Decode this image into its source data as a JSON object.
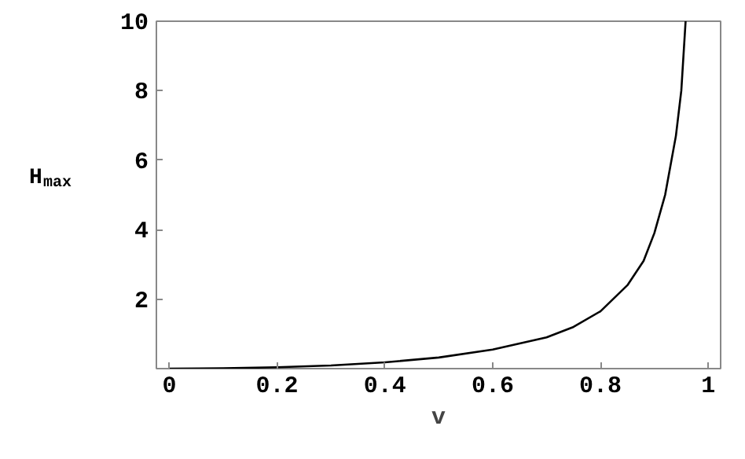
{
  "chart_data": {
    "type": "line",
    "xlabel": "v",
    "ylabel": "H$_{max}$",
    "x": [
      0,
      0.1,
      0.2,
      0.3,
      0.4,
      0.5,
      0.6,
      0.7,
      0.75,
      0.8,
      0.85,
      0.88,
      0.9,
      0.92,
      0.94,
      0.95,
      0.958
    ],
    "series": [
      {
        "color": "#000000",
        "values": [
          0,
          0.01,
          0.04,
          0.09,
          0.18,
          0.32,
          0.55,
          0.9,
          1.2,
          1.65,
          2.4,
          3.1,
          3.9,
          5.0,
          6.7,
          8.0,
          10
        ]
      }
    ],
    "xlim": [
      -0.024,
      1.023
    ],
    "ylim": [
      0,
      10
    ],
    "xticks": [
      0,
      {
        "value": 0.2,
        "label": "0.2"
      },
      {
        "value": 0.4,
        "label": "0.4"
      },
      {
        "value": 0.6,
        "label": "0.6"
      },
      {
        "value": 0.8,
        "label": "0.8"
      },
      1
    ],
    "yticks": [
      2,
      4,
      6,
      8,
      10
    ],
    "grid": false,
    "marker": "none",
    "line_style": "solid"
  }
}
